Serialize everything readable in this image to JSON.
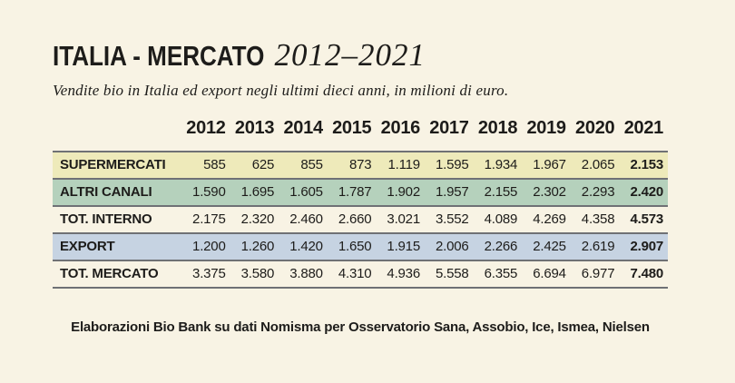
{
  "colors": {
    "background": "#f8f3e4",
    "ink": "#1d1c1a",
    "table_border": "#6f7175",
    "row_supermercati": "#eeeaba",
    "row_altri_canali": "#b5d1bc",
    "row_tot_interno": "",
    "row_export": "#c6d3e2",
    "row_tot_mercato": ""
  },
  "header": {
    "title_main": "ITALIA - MERCATO",
    "title_range": "2012–2021",
    "subtitle": "Vendite bio in Italia ed export negli ultimi dieci anni, in milioni di euro."
  },
  "footer": {
    "source": "Elaborazioni Bio Bank su dati Nomisma per Osservatorio Sana, Assobio, Ice, Ismea, Nielsen"
  },
  "chart_data": {
    "type": "table",
    "title": "ITALIA - MERCATO 2012–2021",
    "subtitle": "Vendite bio in Italia ed export negli ultimi dieci anni, in milioni di euro.",
    "unit": "milioni di euro",
    "number_format": "thousands separated by dot (it-IT)",
    "emphasis": "2021 column rendered bold",
    "categories": [
      "2012",
      "2013",
      "2014",
      "2015",
      "2016",
      "2017",
      "2018",
      "2019",
      "2020",
      "2021"
    ],
    "series": [
      {
        "name": "SUPERMERCATI",
        "color_key": "row_supermercati",
        "values": [
          585,
          625,
          855,
          873,
          1119,
          1595,
          1934,
          1967,
          2065,
          2153
        ]
      },
      {
        "name": "ALTRI CANALI",
        "color_key": "row_altri_canali",
        "values": [
          1590,
          1695,
          1605,
          1787,
          1902,
          1957,
          2155,
          2302,
          2293,
          2420
        ]
      },
      {
        "name": "TOT. INTERNO",
        "color_key": "row_tot_interno",
        "values": [
          2175,
          2320,
          2460,
          2660,
          3021,
          3552,
          4089,
          4269,
          4358,
          4573
        ]
      },
      {
        "name": "EXPORT",
        "color_key": "row_export",
        "values": [
          1200,
          1260,
          1420,
          1650,
          1915,
          2006,
          2266,
          2425,
          2619,
          2907
        ]
      },
      {
        "name": "TOT. MERCATO",
        "color_key": "row_tot_mercato",
        "values": [
          3375,
          3580,
          3880,
          4310,
          4936,
          5558,
          6355,
          6694,
          6977,
          7480
        ]
      }
    ],
    "source": "Elaborazioni Bio Bank su dati Nomisma per Osservatorio Sana, Assobio, Ice, Ismea, Nielsen"
  }
}
